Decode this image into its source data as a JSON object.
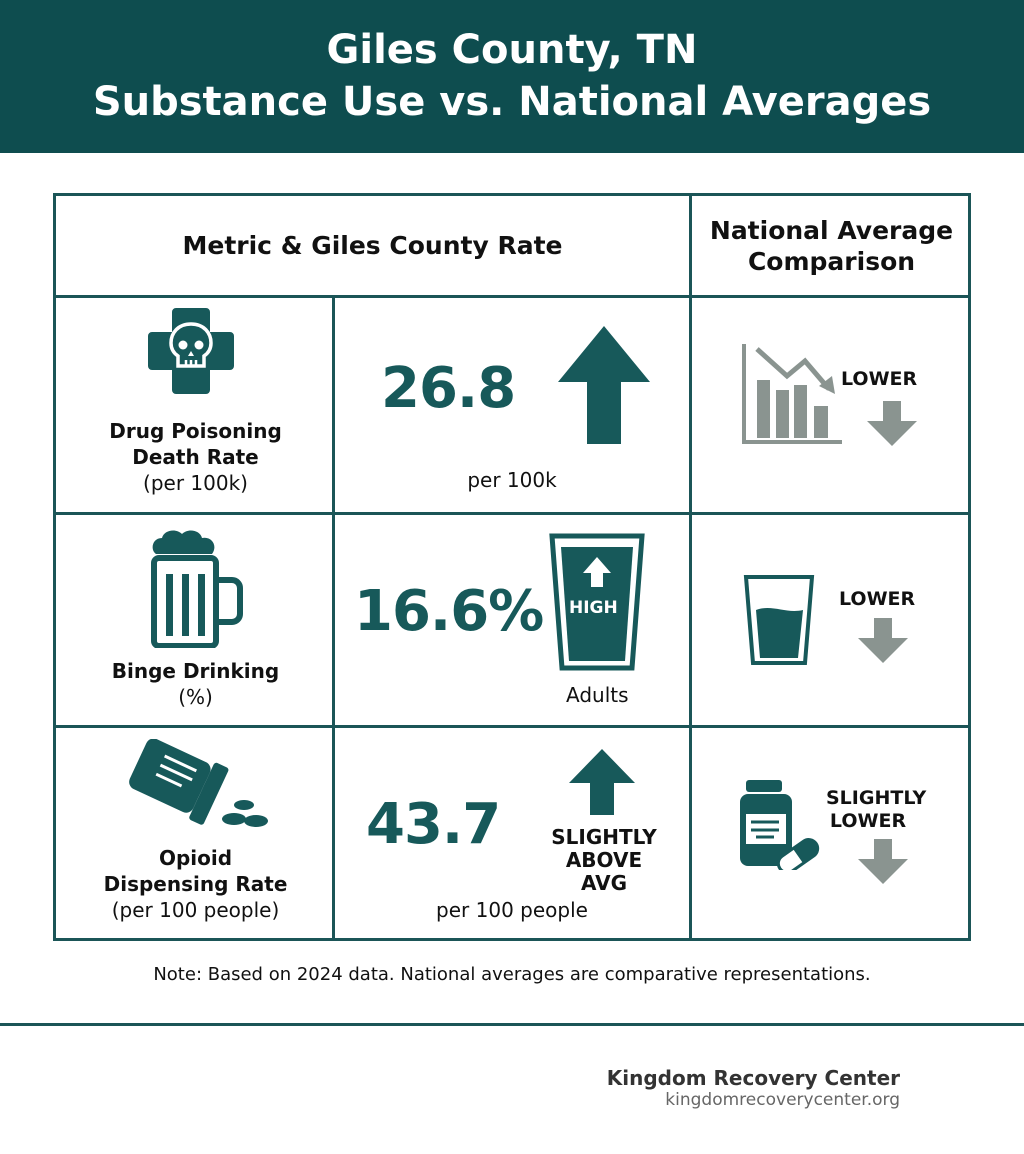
{
  "header": {
    "title_line1": "Giles County, TN",
    "title_line2": "Substance Use vs. National Averages"
  },
  "table": {
    "col1_header": "Metric & Giles County Rate",
    "col2_header": "National Average Comparison",
    "rows": [
      {
        "metric": "Drug Poisoning",
        "metric2": "Death Rate",
        "metric_unit": "(per 100k)",
        "icon": "skull-cross-icon",
        "value": "26.8",
        "value_unit": "per 100k",
        "indicator": "up-arrow",
        "comparison": "LOWER",
        "comparison2": "",
        "comparison_icon": "declining-bar-chart-icon"
      },
      {
        "metric": "Binge Drinking",
        "metric2": "",
        "metric_unit": "(%)",
        "icon": "beer-mug-icon",
        "value": "16.6%",
        "value_unit": "Adults",
        "indicator": "HIGH",
        "comparison": "LOWER",
        "comparison2": "",
        "comparison_icon": "half-glass-icon"
      },
      {
        "metric": "Opioid",
        "metric2": "Dispensing Rate",
        "metric_unit": "(per 100 people)",
        "icon": "spilled-pill-bottle-icon",
        "value": "43.7",
        "value_unit": "per 100 people",
        "indicator": "SLIGHTLY",
        "indicator2": "ABOVE AVG",
        "comparison": "SLIGHTLY",
        "comparison2": "LOWER",
        "comparison_icon": "pill-bottle-icon"
      }
    ]
  },
  "note": "Note: Based on 2024 data. National averages are comparative representations.",
  "footer": {
    "org": "Kingdom Recovery Center",
    "url": "kingdomrecoverycenter.org"
  },
  "colors": {
    "header_bg": "#0e4d4f",
    "accent": "#17595a",
    "gray": "#8a9490"
  }
}
